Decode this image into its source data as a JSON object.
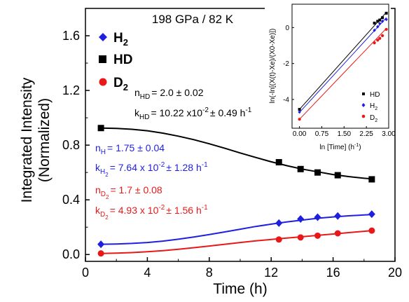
{
  "chart_data": [
    {
      "type": "scatter",
      "title": "198 GPa / 82 K",
      "xlabel": "Time (h)",
      "ylabel_line1": "Integrated Intensity",
      "ylabel_line2": "(Normalized)",
      "xlim": [
        0,
        20
      ],
      "ylim": [
        -0.05,
        1.8
      ],
      "xticks": [
        "0",
        "4",
        "8",
        "12",
        "16",
        "20"
      ],
      "yticks": [
        "0.0",
        "0.4",
        "0.8",
        "1.2",
        "1.6"
      ],
      "grid": false,
      "legend_position": "top-left",
      "legend": [
        {
          "base": "H",
          "sub": "2"
        },
        {
          "base": "HD",
          "sub": ""
        },
        {
          "base": "D",
          "sub": "2"
        }
      ],
      "series": [
        {
          "name": "HD",
          "marker": "square",
          "color": "#000000",
          "x": [
            1.0,
            12.5,
            13.9,
            15.0,
            16.3,
            18.5
          ],
          "y": [
            0.925,
            0.675,
            0.625,
            0.6,
            0.58,
            0.55
          ],
          "fit_x": [
            1,
            2,
            3,
            4,
            5,
            6,
            7,
            8,
            9,
            10,
            11,
            12,
            13,
            14,
            15,
            16,
            17,
            18,
            18.5
          ],
          "fit_y": [
            0.925,
            0.922,
            0.916,
            0.905,
            0.888,
            0.866,
            0.84,
            0.81,
            0.777,
            0.743,
            0.71,
            0.678,
            0.65,
            0.625,
            0.605,
            0.585,
            0.57,
            0.558,
            0.553
          ]
        },
        {
          "name": "H2",
          "marker": "diamond",
          "color": "#1f1fe0",
          "x": [
            1.0,
            12.5,
            13.9,
            15.0,
            16.3,
            18.5
          ],
          "y": [
            0.075,
            0.23,
            0.26,
            0.273,
            0.282,
            0.295
          ],
          "fit_x": [
            1,
            2,
            3,
            4,
            5,
            6,
            7,
            8,
            9,
            10,
            11,
            12,
            13,
            14,
            15,
            16,
            17,
            18,
            18.5
          ],
          "fit_y": [
            0.075,
            0.077,
            0.081,
            0.088,
            0.098,
            0.112,
            0.128,
            0.146,
            0.165,
            0.185,
            0.205,
            0.222,
            0.238,
            0.252,
            0.265,
            0.275,
            0.283,
            0.289,
            0.292
          ]
        },
        {
          "name": "D2",
          "marker": "circle",
          "color": "#e81818",
          "x": [
            1.0,
            12.5,
            13.9,
            15.0,
            16.3,
            18.5
          ],
          "y": [
            0.008,
            0.11,
            0.125,
            0.138,
            0.155,
            0.175
          ],
          "fit_x": [
            1,
            2,
            3,
            4,
            5,
            6,
            7,
            8,
            9,
            10,
            11,
            12,
            13,
            14,
            15,
            16,
            17,
            18,
            18.5
          ],
          "fit_y": [
            0.008,
            0.01,
            0.014,
            0.02,
            0.028,
            0.038,
            0.05,
            0.062,
            0.075,
            0.088,
            0.1,
            0.11,
            0.12,
            0.13,
            0.14,
            0.15,
            0.16,
            0.17,
            0.175
          ]
        }
      ],
      "annotations": {
        "hd_n": {
          "pre": "n",
          "sub": "HD",
          "post": "= 2.0 ± 0.02",
          "color": "#000000"
        },
        "hd_k": {
          "pre": "k",
          "sub": "HD",
          "post": "= 10.22 x10",
          "sup": "-2",
          "post2": "± 0.49 h",
          "sup2": "-1",
          "color": "#000000"
        },
        "h2_n": {
          "pre": "n",
          "sub": "H",
          "sub2": "2",
          "post": "= 1.75 ± 0.04",
          "color": "#1f1fe0"
        },
        "h2_k": {
          "pre": "k",
          "sub": "H",
          "sub2": "2",
          "post": "= 7.64 x 10",
          "sup": "-2",
          "post2": "± 1.28 h",
          "sup2": "-1",
          "color": "#1f1fe0"
        },
        "d2_n": {
          "pre": "n",
          "sub": "D",
          "sub2": "2",
          "post": "= 1.7 ± 0.08",
          "color": "#e81818"
        },
        "d2_k": {
          "pre": "k",
          "sub": "D",
          "sub2": "2",
          "post": "= 4.93 x 10",
          "sup": "-2",
          "post2": "± 1.56 h",
          "sup2": "-1",
          "color": "#e81818"
        }
      }
    },
    {
      "type": "scatter",
      "xlabel": "ln [Time] (h",
      "xlabel_sup": "-1",
      "xlabel_end": ")",
      "ylabel": "ln(-ln[(X(t)-X",
      "ylabel_full": "ln(-ln[(X(t)-Xe)/(X0-Xe)])",
      "xlim": [
        -0.25,
        3.0
      ],
      "ylim": [
        -5.6,
        1.3
      ],
      "xticks": [
        "0.00",
        "0.75",
        "1.50",
        "2.25",
        "3.00"
      ],
      "yticks": [
        "-4",
        "-2",
        "0"
      ],
      "legend_position": "bottom-right",
      "legend": [
        {
          "base": "HD",
          "sub": ""
        },
        {
          "base": "H",
          "sub": "2"
        },
        {
          "base": "D",
          "sub": "2"
        }
      ],
      "series": [
        {
          "name": "HD",
          "color": "#000000",
          "x": [
            0.0,
            2.52,
            2.63,
            2.7,
            2.79,
            2.92
          ],
          "y": [
            -4.55,
            0.25,
            0.35,
            0.42,
            0.55,
            0.8
          ],
          "line": [
            [
              0.0,
              -4.55
            ],
            [
              2.92,
              0.85
            ]
          ]
        },
        {
          "name": "H2",
          "color": "#1f1fe0",
          "x": [
            0.0,
            2.52,
            2.63,
            2.7,
            2.79,
            2.92
          ],
          "y": [
            -4.7,
            -0.15,
            0.05,
            0.22,
            0.35,
            0.45
          ],
          "line": [
            [
              0.0,
              -4.72
            ],
            [
              2.92,
              0.55
            ]
          ]
        },
        {
          "name": "D2",
          "color": "#e81818",
          "x": [
            0.0,
            2.52,
            2.63,
            2.7,
            2.79,
            2.92
          ],
          "y": [
            -5.1,
            -0.85,
            -0.7,
            -0.6,
            -0.45,
            -0.1
          ],
          "line": [
            [
              0.0,
              -5.1
            ],
            [
              2.92,
              -0.05
            ]
          ]
        }
      ]
    }
  ]
}
